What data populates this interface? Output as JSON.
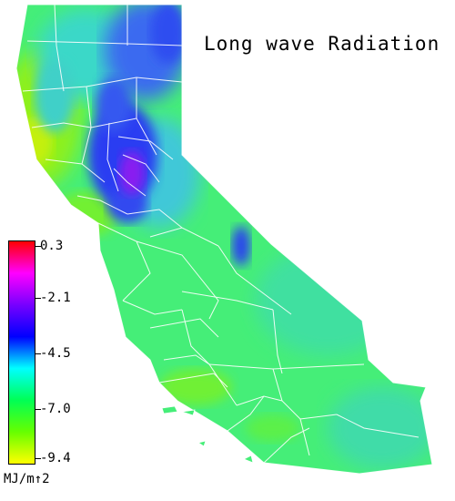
{
  "title": "Long wave Radiation",
  "legend": {
    "unit": "MJ/m↑2",
    "ticks": [
      "0.3",
      "-2.1",
      "-4.5",
      "-7.0",
      "-9.4"
    ],
    "colors": [
      "#ff0000",
      "#ff00ff",
      "#7700ff",
      "#0000ff",
      "#00ffff",
      "#00ff55",
      "#66ff00",
      "#ffff00"
    ]
  },
  "map_colors": {
    "purple": "#8a1cf0",
    "blue": "#2a3cf2",
    "light_blue": "#3da6f0",
    "cyan": "#38d8c8",
    "green": "#3ff07a",
    "lime": "#7af020",
    "yellow_green": "#b8f010",
    "boundary": "#ffffff"
  }
}
